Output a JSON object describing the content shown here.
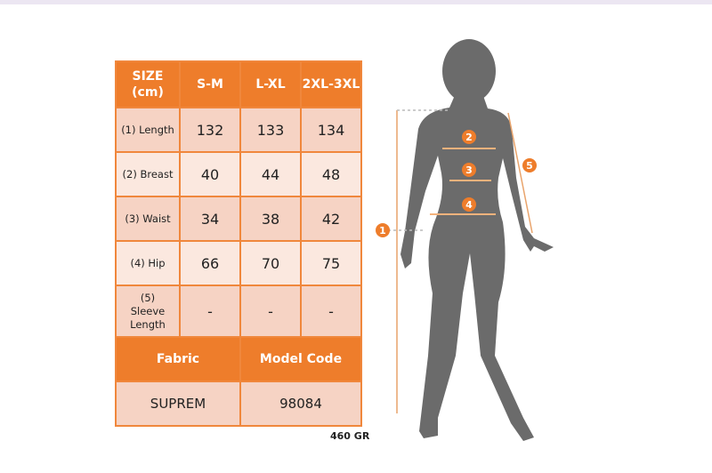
{
  "table": {
    "header": [
      "SIZE (cm)",
      "S-M",
      "L-XL",
      "2XL-3XL"
    ],
    "rows": [
      {
        "label": "(1) Length",
        "values": [
          "132",
          "133",
          "134"
        ]
      },
      {
        "label": "(2) Breast",
        "values": [
          "40",
          "44",
          "48"
        ]
      },
      {
        "label": "(3) Waist",
        "values": [
          "34",
          "38",
          "42"
        ]
      },
      {
        "label": "(4) Hip",
        "values": [
          "66",
          "70",
          "75"
        ]
      },
      {
        "label": "(5) Sleeve Length",
        "values": [
          "-",
          "-",
          "-"
        ]
      }
    ],
    "footer_headers": [
      "Fabric",
      "Model Code"
    ],
    "footer_values": [
      "SUPREM",
      "98084"
    ]
  },
  "weight": "460 GR",
  "figure": {
    "markers": [
      "1",
      "2",
      "3",
      "4",
      "5"
    ]
  },
  "colors": {
    "accent": "#ee7d2b",
    "row_dark": "#f6d3c4",
    "row_light": "#fbe8df",
    "silhouette": "#6b6b6b"
  }
}
